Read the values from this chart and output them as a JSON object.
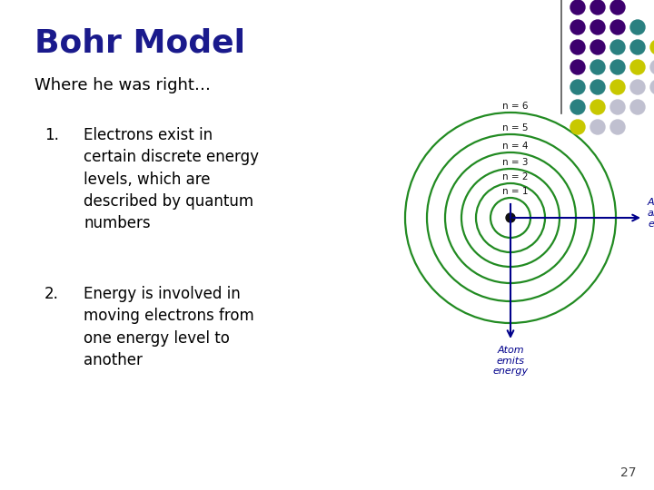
{
  "title": "Bohr Model",
  "subtitle": "Where he was right…",
  "items": [
    "Electrons exist in\ncertain discrete energy\nlevels, which are\ndescribed by quantum\nnumbers",
    "Energy is involved in\nmoving electrons from\none energy level to\nanother"
  ],
  "title_color": "#1a1a8c",
  "text_color": "#000000",
  "bg_color": "#ffffff",
  "orbit_color": "#228b22",
  "orbit_radii": [
    0.055,
    0.085,
    0.115,
    0.148,
    0.183,
    0.22
  ],
  "orbit_labels": [
    "n = 1",
    "n = 2",
    "n = 3",
    "n = 4",
    "n = 5",
    "n = 6"
  ],
  "arrow_color": "#00008b",
  "atom_absorbs_color": "#00008b",
  "atom_emits_color": "#00008b",
  "page_number": "27",
  "dot_grid_rows": [
    [
      "#3d006e",
      "#3d006e",
      "#3d006e",
      null,
      null
    ],
    [
      "#3d006e",
      "#3d006e",
      "#3d006e",
      "#2a8080",
      null
    ],
    [
      "#3d006e",
      "#3d006e",
      "#2a8080",
      "#2a8080",
      "#c8c800"
    ],
    [
      "#3d006e",
      "#2a8080",
      "#2a8080",
      "#c8c800",
      "#c0c0d0"
    ],
    [
      "#2a8080",
      "#2a8080",
      "#c8c800",
      "#c0c0d0",
      "#c0c0d0"
    ],
    [
      "#2a8080",
      "#c8c800",
      "#c0c0d0",
      "#c0c0d0",
      null
    ],
    [
      "#c8c800",
      "#c0c0d0",
      "#c0c0d0",
      null,
      null
    ]
  ]
}
